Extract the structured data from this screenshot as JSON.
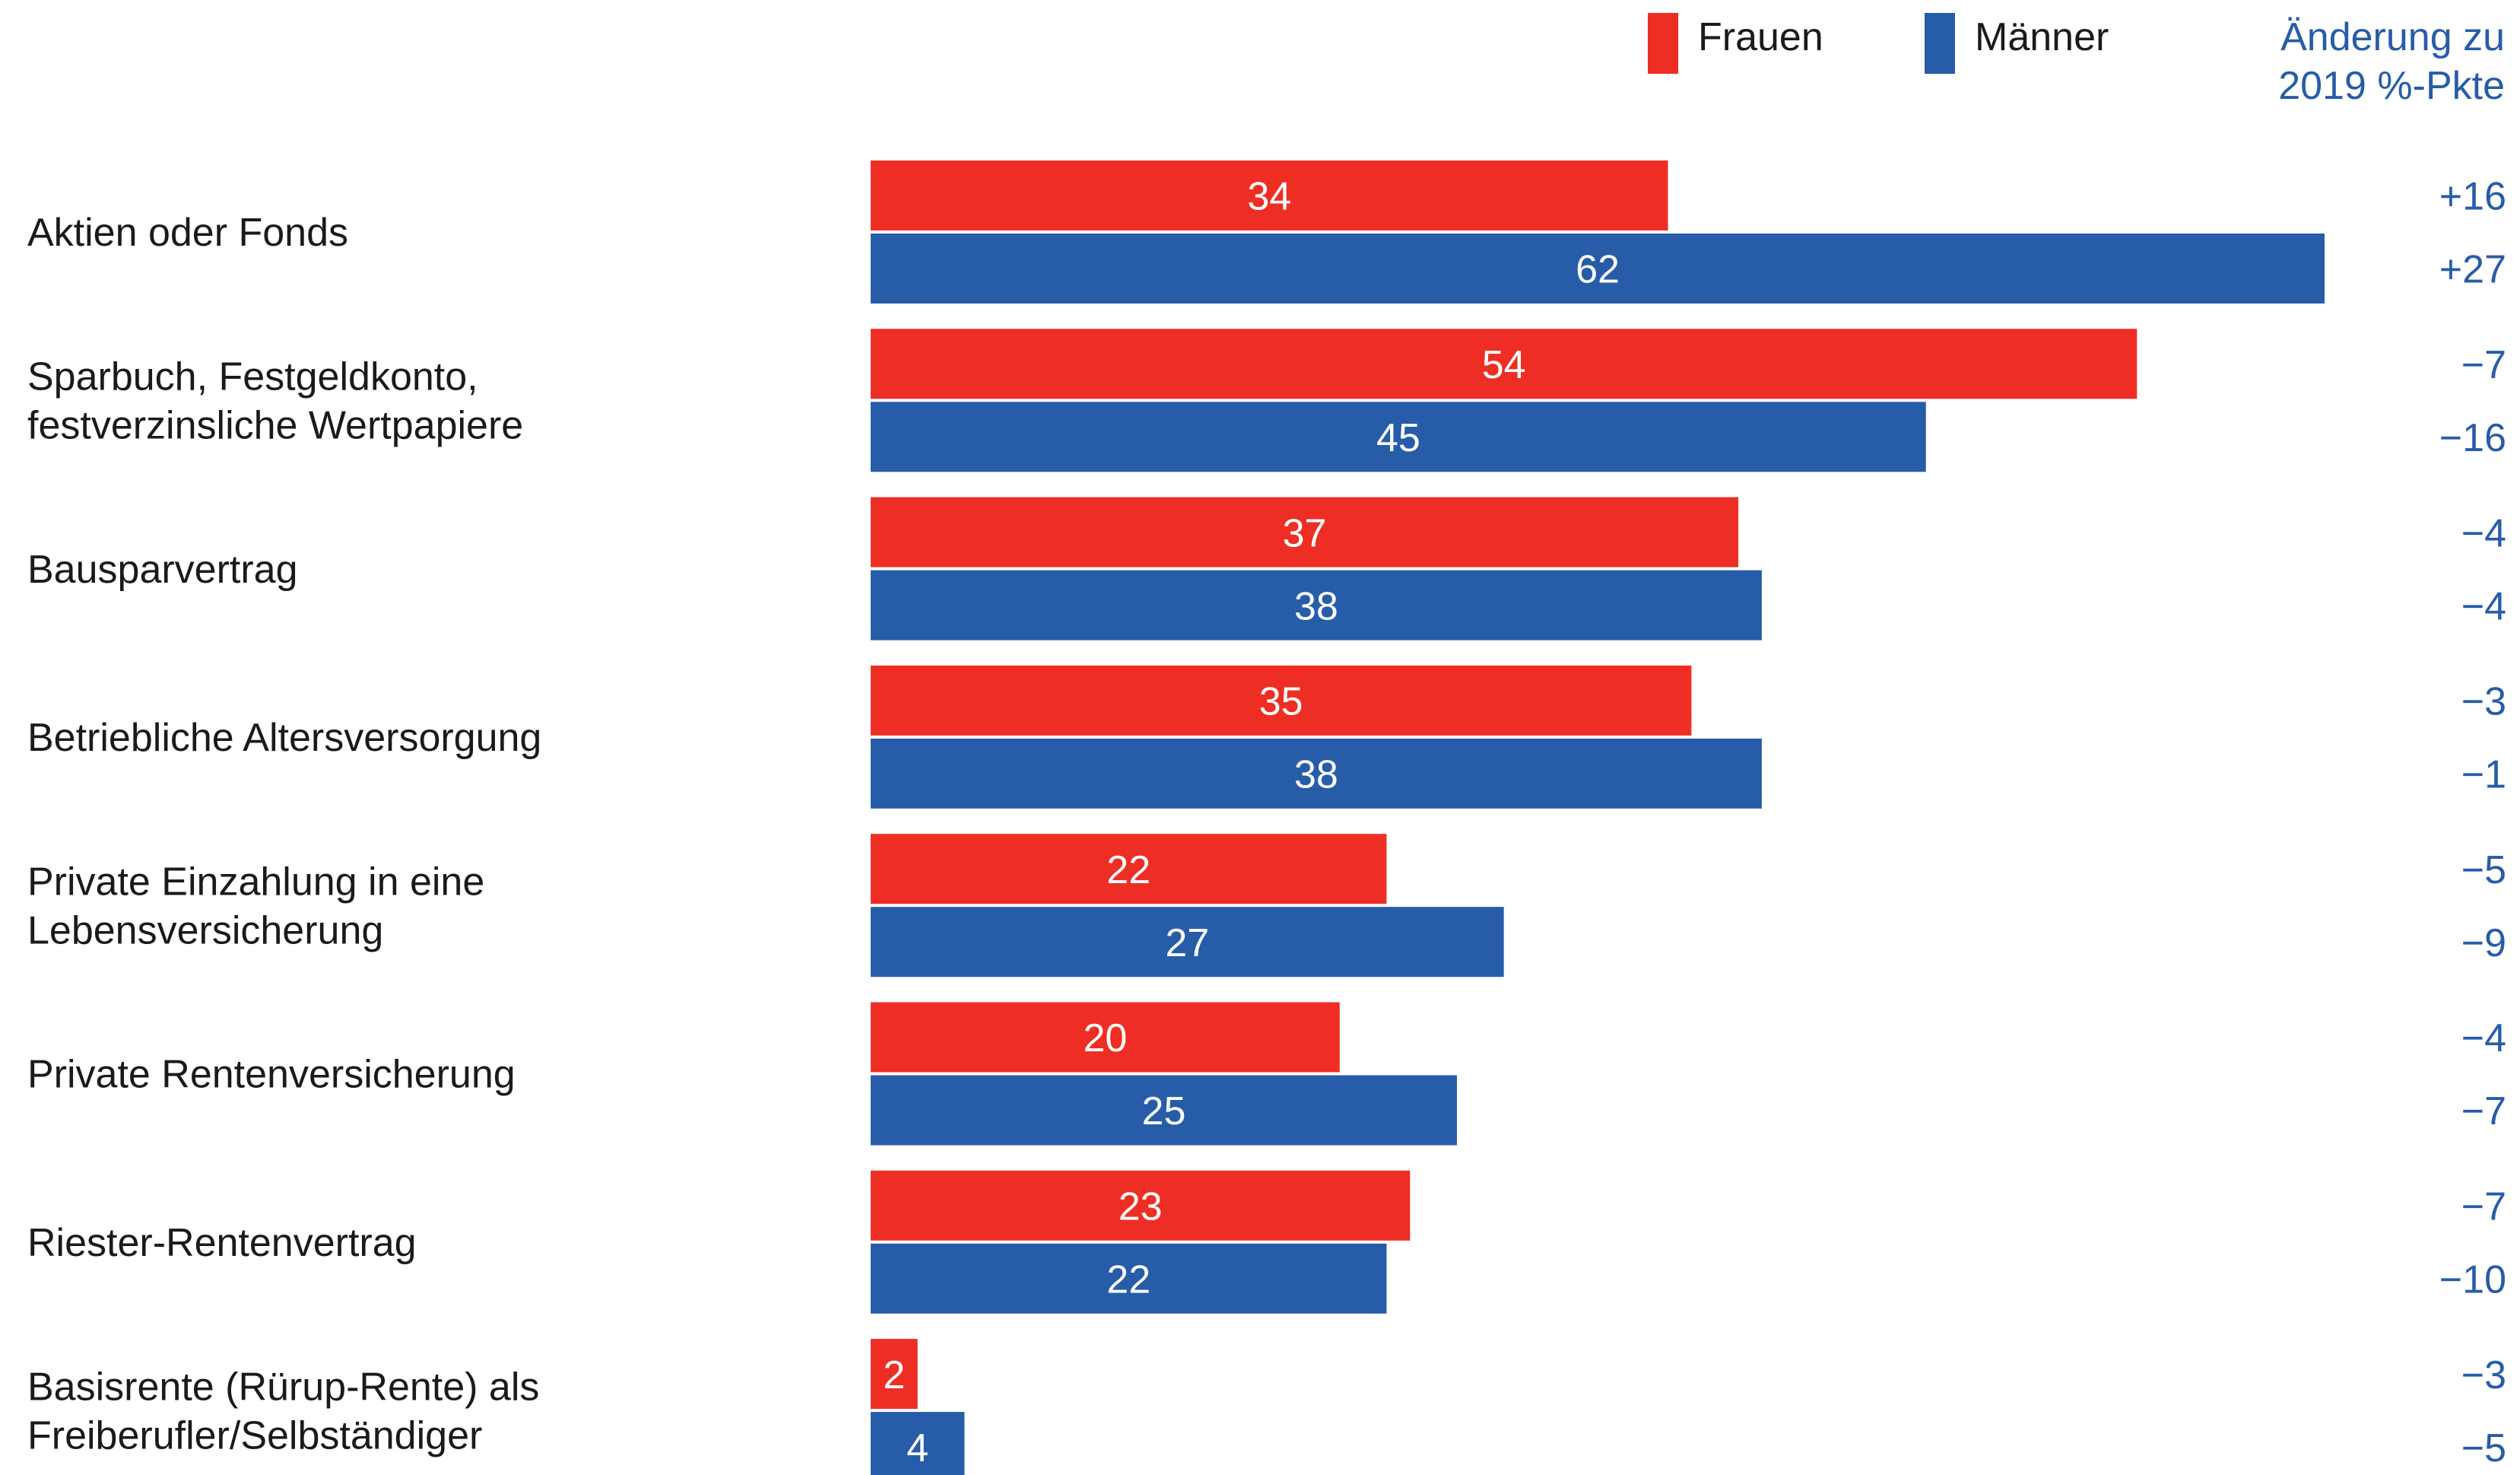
{
  "legend": {
    "women_label": "Frauen",
    "men_label": "Männer",
    "change_header_line1": "Änderung zu",
    "change_header_line2": "2019 %-Pkte"
  },
  "colors": {
    "women": "#ee2e24",
    "men": "#275ca9",
    "change_header": "#275ca9",
    "label_text": "#1a1a1a",
    "bar_value_text": "#ffffff"
  },
  "chart_data": {
    "type": "bar",
    "orientation": "horizontal",
    "categories": [
      [
        "Aktien oder Fonds"
      ],
      [
        "Sparbuch, Festgeldkonto,",
        "festverzinsliche Wertpapiere"
      ],
      [
        "Bausparvertrag"
      ],
      [
        "Betriebliche Altersversorgung"
      ],
      [
        "Private Einzahlung in eine",
        "Lebensversicherung"
      ],
      [
        "Private Rentenversicherung"
      ],
      [
        "Riester-Rentenvertrag"
      ],
      [
        "Basisrente (Rürup-Rente) als",
        "Freiberufler/Selbständiger"
      ]
    ],
    "series": [
      {
        "name": "Frauen",
        "values": [
          34,
          54,
          37,
          35,
          22,
          20,
          23,
          2
        ],
        "change": [
          "+16",
          "−7",
          "−4",
          "−3",
          "−5",
          "−4",
          "−7",
          "−3"
        ]
      },
      {
        "name": "Männer",
        "values": [
          62,
          45,
          38,
          38,
          27,
          25,
          22,
          4
        ],
        "change": [
          "+27",
          "−16",
          "−4",
          "−1",
          "−9",
          "−7",
          "−10",
          "−5"
        ]
      }
    ],
    "xlim": [
      0,
      62
    ],
    "grid": false
  }
}
